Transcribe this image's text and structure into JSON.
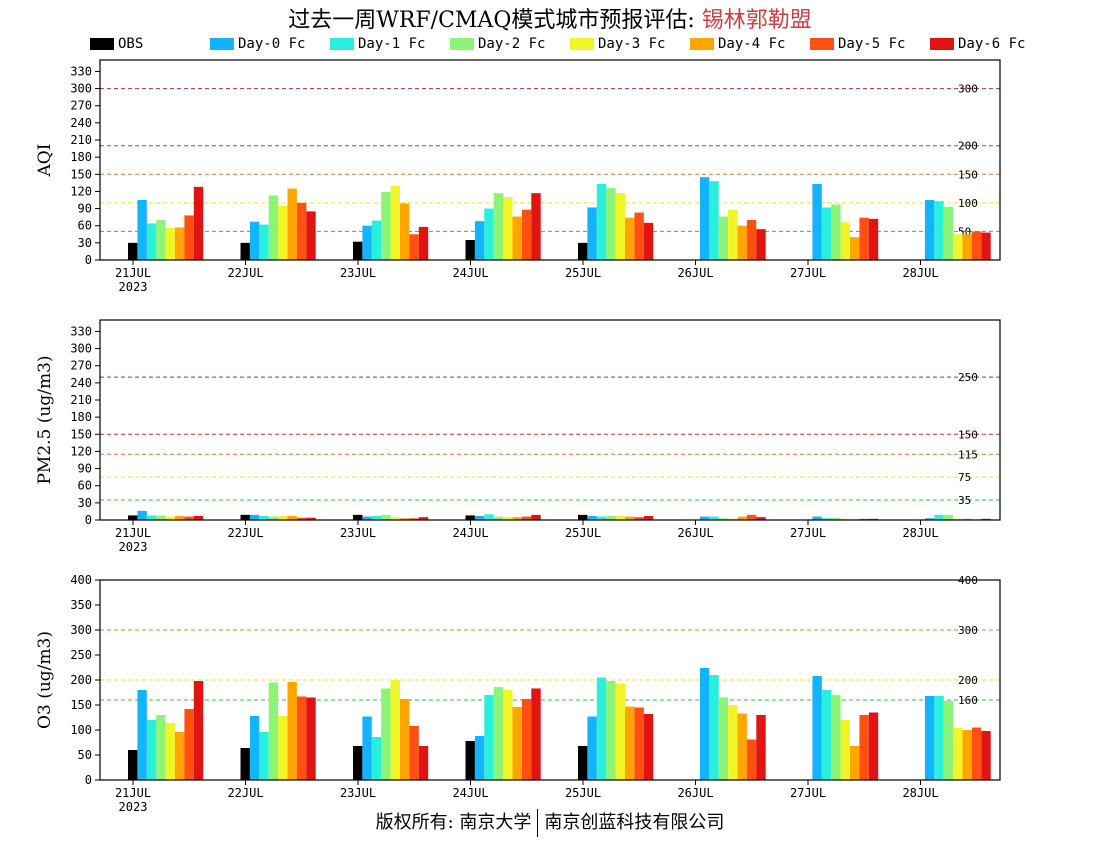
{
  "title": {
    "main": "过去一周WRF/CMAQ模式城市预报评估: ",
    "station": "锡林郭勒盟"
  },
  "footer": {
    "left": "版权所有: 南京大学",
    "right": "南京创蓝科技有限公司"
  },
  "colors": {
    "OBS": "#000000",
    "Day-0 Fc": "#12b4ff",
    "Day-1 Fc": "#28f0dc",
    "Day-2 Fc": "#8cf578",
    "Day-3 Fc": "#f0f528",
    "Day-4 Fc": "#ffa500",
    "Day-5 Fc": "#ff5014",
    "Day-6 Fc": "#e11414"
  },
  "chart_data": [
    {
      "type": "bar",
      "ylabel": "AQI",
      "ylim": [
        0,
        350
      ],
      "yticks": [
        0,
        30,
        60,
        90,
        120,
        150,
        180,
        210,
        240,
        270,
        300,
        330
      ],
      "categories": [
        "21JUL",
        "22JUL",
        "23JUL",
        "24JUL",
        "25JUL",
        "26JUL",
        "27JUL",
        "28JUL"
      ],
      "first_category_sublabel": "2023",
      "reference_lines": [
        {
          "value": 300,
          "label": "300",
          "color": "#a0304a"
        },
        {
          "value": 200,
          "label": "200",
          "color": "#d23232"
        },
        {
          "value": 150,
          "label": "150",
          "color": "#e87830"
        },
        {
          "value": 100,
          "label": "100",
          "color": "#e6e61e"
        },
        {
          "value": 50,
          "label": "50",
          "color": "#28c828"
        }
      ],
      "series": [
        {
          "name": "OBS",
          "values": [
            30,
            30,
            32,
            35,
            30,
            null,
            null,
            null
          ]
        },
        {
          "name": "Day-0 Fc",
          "values": [
            105,
            67,
            60,
            68,
            92,
            145,
            133,
            105
          ]
        },
        {
          "name": "Day-1 Fc",
          "values": [
            64,
            62,
            69,
            90,
            133,
            138,
            92,
            103
          ]
        },
        {
          "name": "Day-2 Fc",
          "values": [
            70,
            113,
            119,
            117,
            126,
            76,
            97,
            93
          ]
        },
        {
          "name": "Day-3 Fc",
          "values": [
            56,
            95,
            130,
            110,
            117,
            88,
            66,
            45
          ]
        },
        {
          "name": "Day-4 Fc",
          "values": [
            57,
            125,
            99,
            76,
            74,
            60,
            40,
            45
          ]
        },
        {
          "name": "Day-5 Fc",
          "values": [
            78,
            100,
            45,
            88,
            83,
            70,
            74,
            50
          ]
        },
        {
          "name": "Day-6 Fc",
          "values": [
            128,
            85,
            58,
            117,
            65,
            54,
            72,
            48
          ]
        }
      ]
    },
    {
      "type": "bar",
      "ylabel": "PM2.5 (ug/m3)",
      "ylim": [
        0,
        350
      ],
      "yticks": [
        0,
        30,
        60,
        90,
        120,
        150,
        180,
        210,
        240,
        270,
        300,
        330
      ],
      "categories": [
        "21JUL",
        "22JUL",
        "23JUL",
        "24JUL",
        "25JUL",
        "26JUL",
        "27JUL",
        "28JUL"
      ],
      "first_category_sublabel": "2023",
      "reference_lines": [
        {
          "value": 250,
          "label": "250",
          "color": "#a0304a"
        },
        {
          "value": 150,
          "label": "150",
          "color": "#d23232"
        },
        {
          "value": 115,
          "label": "115",
          "color": "#e87830"
        },
        {
          "value": 75,
          "label": "75",
          "color": "#e6e61e"
        },
        {
          "value": 35,
          "label": "35",
          "color": "#28c828"
        }
      ],
      "series": [
        {
          "name": "OBS",
          "values": [
            8,
            9,
            9,
            8,
            9,
            null,
            null,
            null
          ]
        },
        {
          "name": "Day-0 Fc",
          "values": [
            16,
            9,
            6,
            7,
            7,
            6,
            6,
            3
          ]
        },
        {
          "name": "Day-1 Fc",
          "values": [
            8,
            7,
            7,
            10,
            6,
            6,
            3,
            9
          ]
        },
        {
          "name": "Day-2 Fc",
          "values": [
            8,
            6,
            9,
            6,
            7,
            3,
            4,
            9
          ]
        },
        {
          "name": "Day-3 Fc",
          "values": [
            6,
            7,
            5,
            5,
            7,
            2,
            2,
            2
          ]
        },
        {
          "name": "Day-4 Fc",
          "values": [
            7,
            7,
            3,
            5,
            6,
            6,
            1,
            2
          ]
        },
        {
          "name": "Day-5 Fc",
          "values": [
            6,
            4,
            3,
            6,
            5,
            9,
            2,
            1
          ]
        },
        {
          "name": "Day-6 Fc",
          "values": [
            7,
            4,
            5,
            9,
            7,
            5,
            2,
            2
          ]
        }
      ]
    },
    {
      "type": "bar",
      "ylabel": "O3 (ug/m3)",
      "ylim": [
        0,
        400
      ],
      "yticks": [
        0,
        50,
        100,
        150,
        200,
        250,
        300,
        350,
        400
      ],
      "categories": [
        "21JUL",
        "22JUL",
        "23JUL",
        "24JUL",
        "25JUL",
        "26JUL",
        "27JUL",
        "28JUL"
      ],
      "first_category_sublabel": "2023",
      "reference_lines": [
        {
          "value": 400,
          "label": "400",
          "color": "#d23232"
        },
        {
          "value": 300,
          "label": "300",
          "color": "#e87830"
        },
        {
          "value": 200,
          "label": "200",
          "color": "#e6e61e"
        },
        {
          "value": 160,
          "label": "160",
          "color": "#28c828"
        }
      ],
      "series": [
        {
          "name": "OBS",
          "values": [
            60,
            64,
            68,
            78,
            68,
            null,
            null,
            null
          ]
        },
        {
          "name": "Day-0 Fc",
          "values": [
            180,
            128,
            127,
            88,
            127,
            224,
            208,
            168
          ]
        },
        {
          "name": "Day-1 Fc",
          "values": [
            120,
            96,
            86,
            170,
            205,
            210,
            180,
            168
          ]
        },
        {
          "name": "Day-2 Fc",
          "values": [
            130,
            195,
            183,
            186,
            198,
            165,
            170,
            158
          ]
        },
        {
          "name": "Day-3 Fc",
          "values": [
            114,
            128,
            200,
            180,
            193,
            150,
            120,
            104
          ]
        },
        {
          "name": "Day-4 Fc",
          "values": [
            96,
            196,
            162,
            146,
            147,
            133,
            68,
            100
          ]
        },
        {
          "name": "Day-5 Fc",
          "values": [
            142,
            167,
            108,
            162,
            145,
            81,
            130,
            105
          ]
        },
        {
          "name": "Day-6 Fc",
          "values": [
            198,
            165,
            68,
            183,
            132,
            130,
            135,
            98
          ]
        }
      ]
    }
  ]
}
